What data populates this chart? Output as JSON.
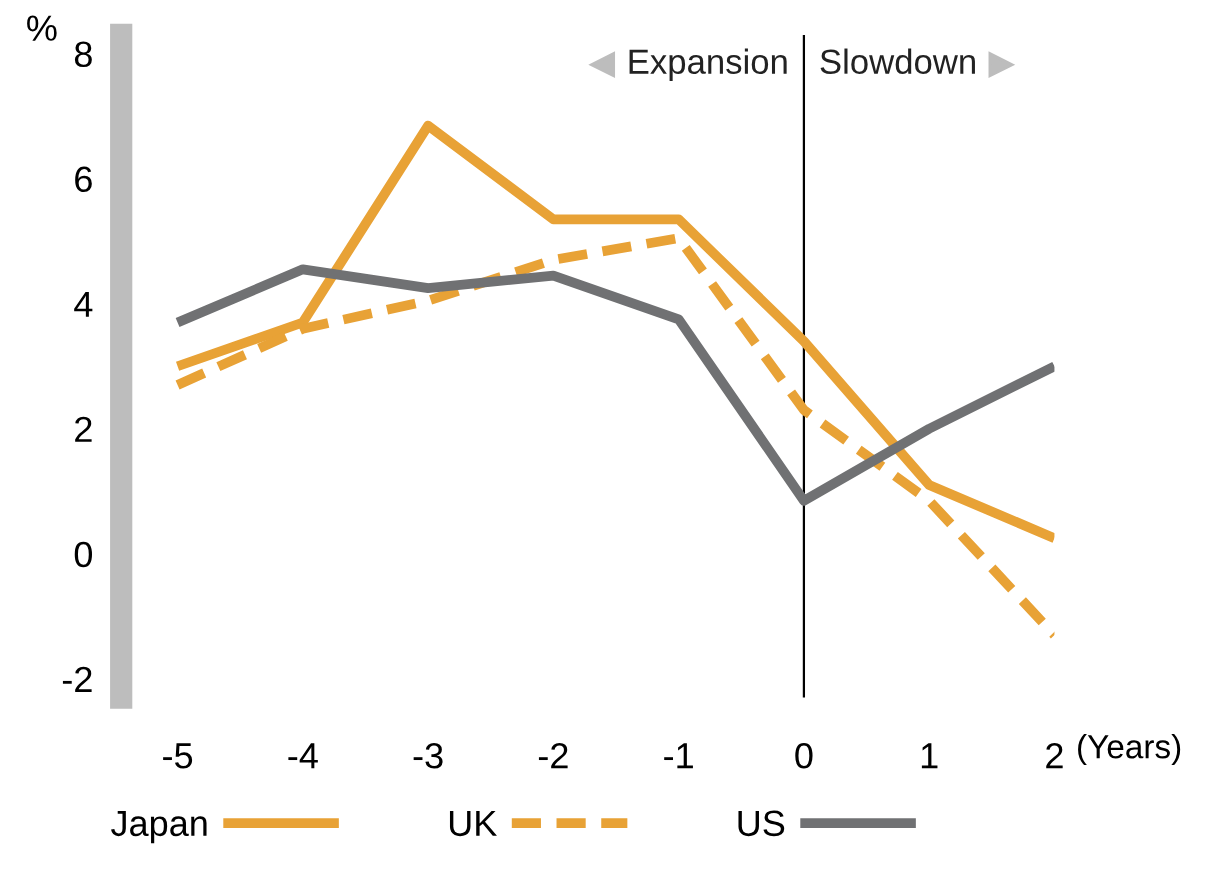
{
  "chart_data": {
    "type": "line",
    "ylabel": "%",
    "xlabel": "(Years)",
    "x": [
      -5,
      -4,
      -3,
      -2,
      -1,
      0,
      1,
      2
    ],
    "series": [
      {
        "name": "Japan",
        "color": "#e8a236",
        "values": [
          3.0,
          3.7,
          6.85,
          5.35,
          5.35,
          3.4,
          1.1,
          0.25
        ],
        "line_style": "solid"
      },
      {
        "name": "UK",
        "color": "#e8a236",
        "values": [
          2.7,
          3.6,
          4.05,
          4.7,
          5.05,
          2.3,
          0.85,
          -1.3
        ],
        "line_style": "dashed"
      },
      {
        "name": "US",
        "color": "#707173",
        "values": [
          3.7,
          4.55,
          4.25,
          4.45,
          3.75,
          0.85,
          2.0,
          3.0
        ],
        "line_style": "solid"
      }
    ],
    "xlim": [
      -5.45,
      2
    ],
    "ylim": [
      -2.3,
      8.3
    ],
    "xticks": [
      -5,
      -4,
      -3,
      -2,
      -1,
      0,
      1,
      2
    ],
    "yticks": [
      -2,
      0,
      2,
      4,
      6,
      8
    ],
    "ref_lines": [
      {
        "axis": "x",
        "value": 0,
        "color": "#000000"
      }
    ],
    "annotations": [
      "Expansion",
      "Slowdown"
    ],
    "grid": false,
    "legend": "bottom",
    "marker": "none"
  }
}
